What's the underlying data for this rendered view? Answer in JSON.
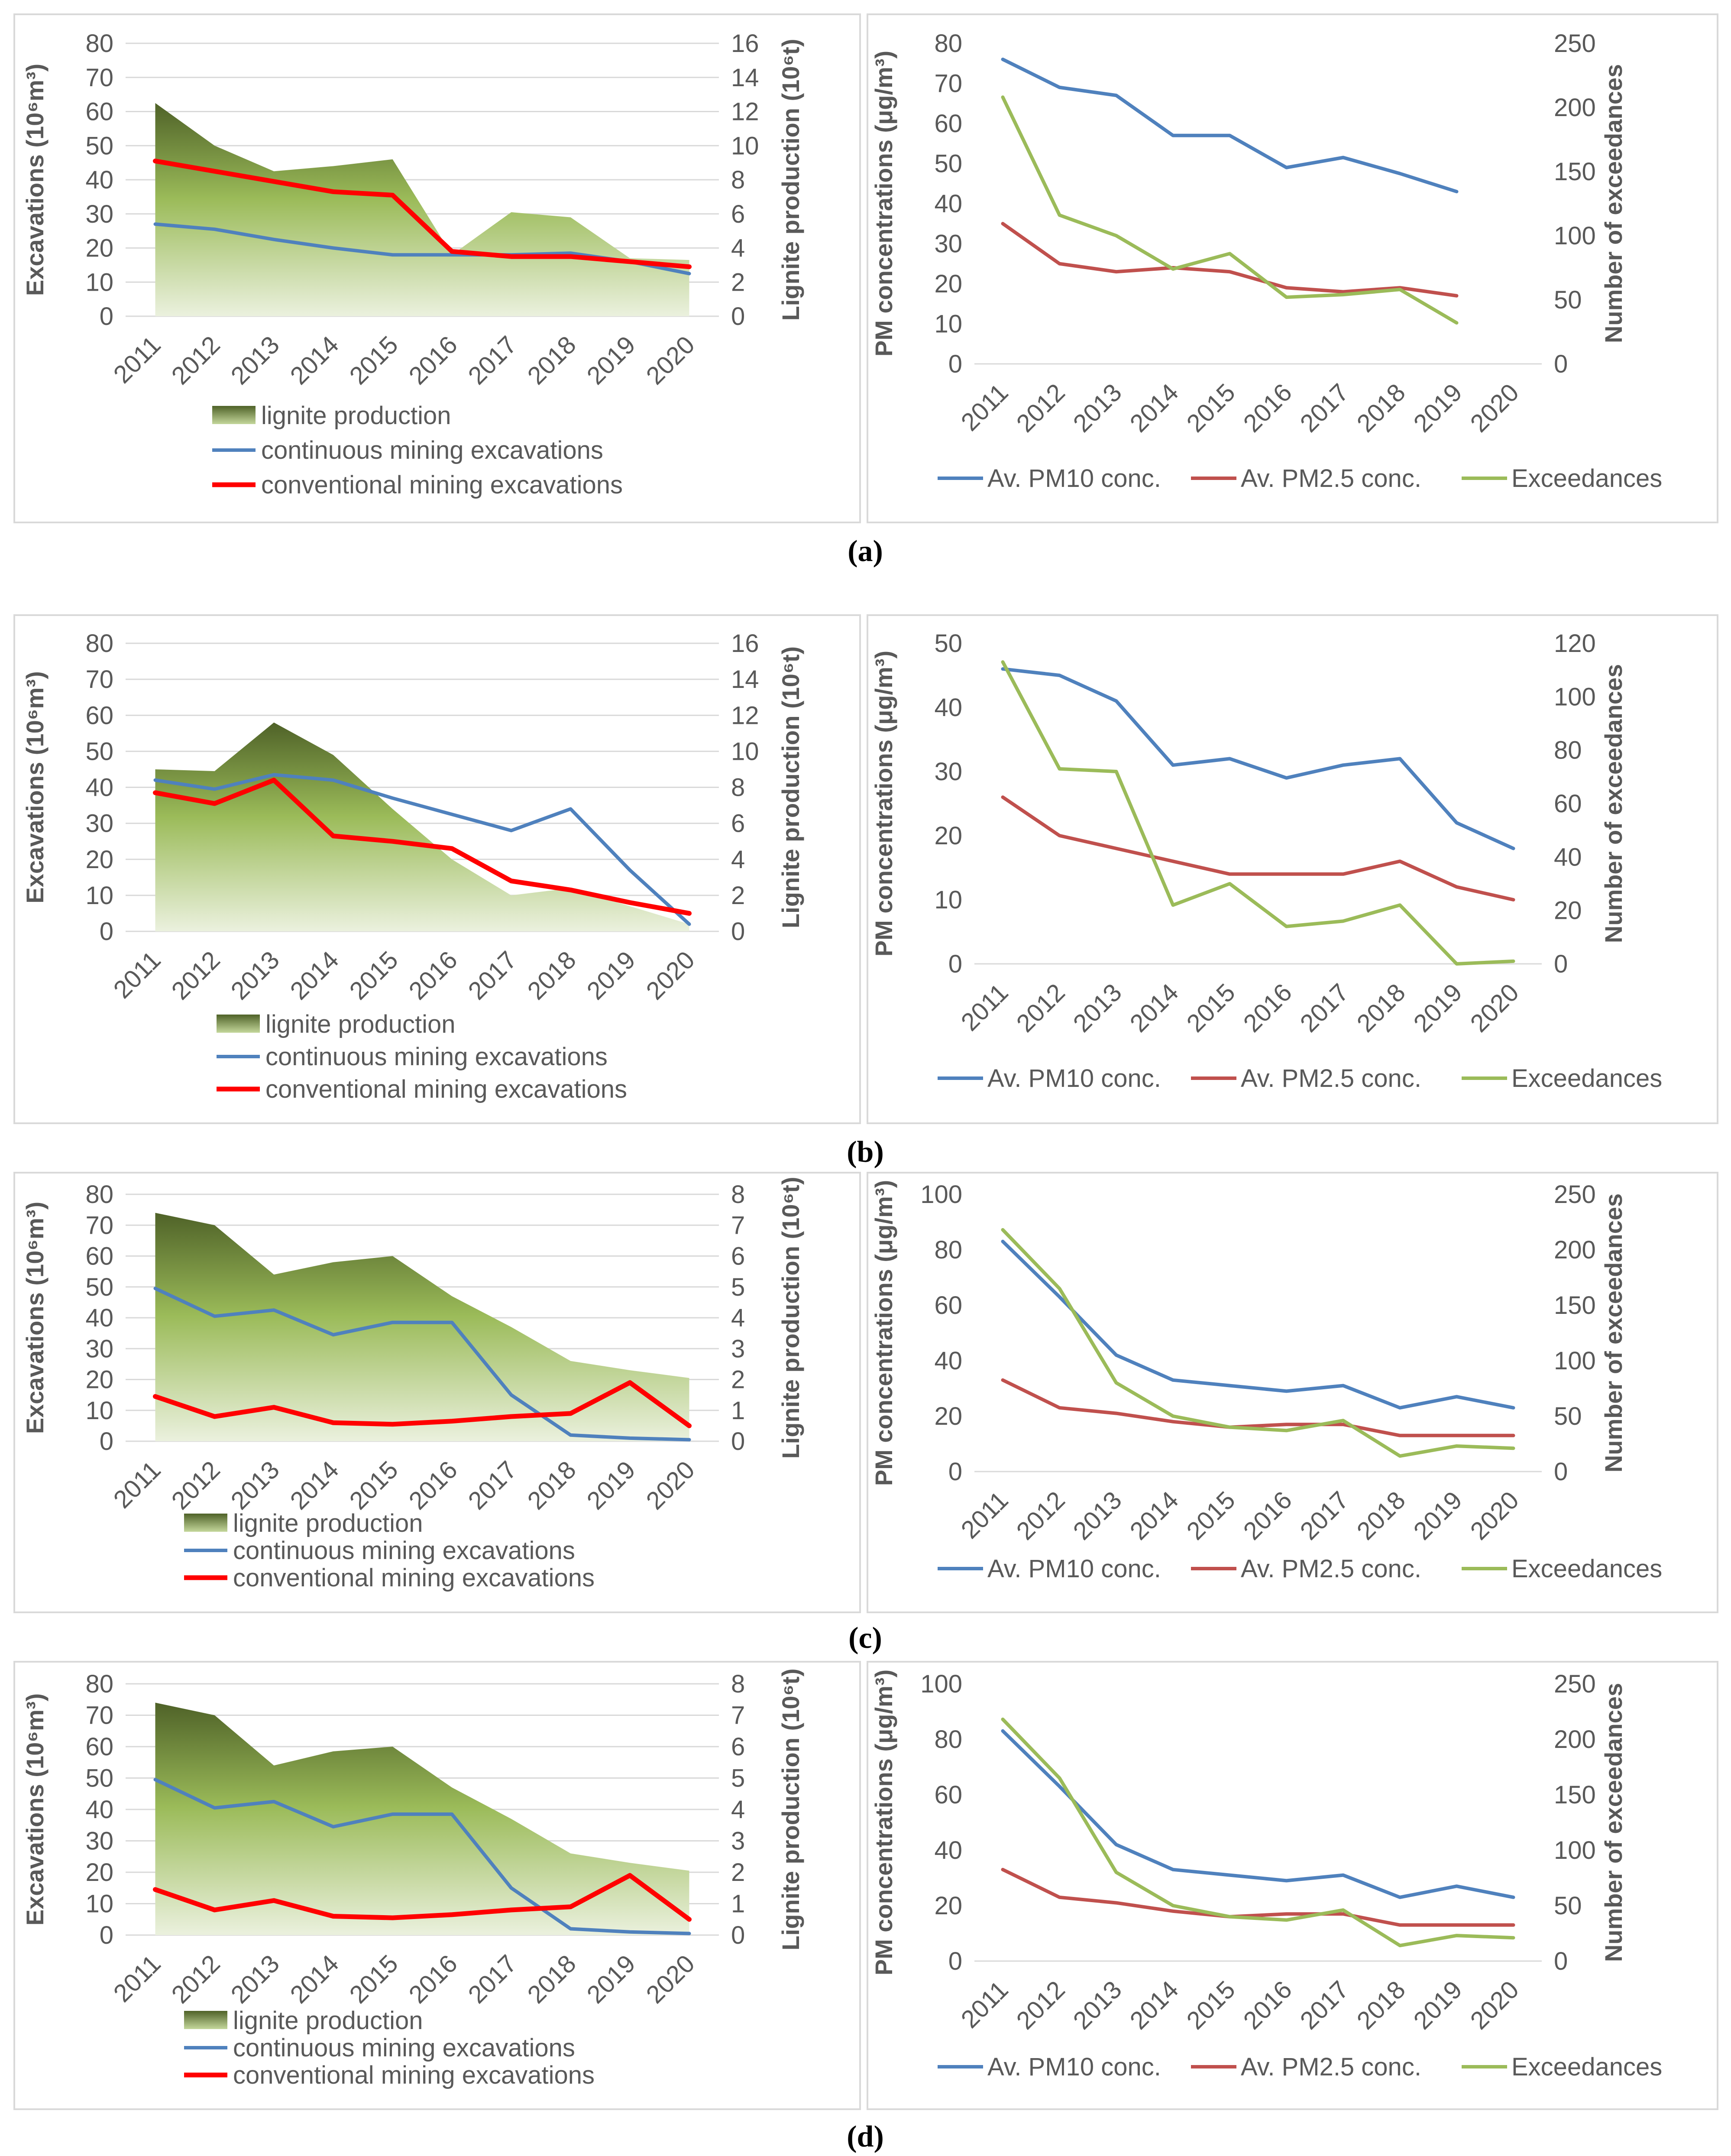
{
  "row_labels": [
    "(a)",
    "(b)",
    "(c)",
    "(d)"
  ],
  "chart_data": [
    {
      "id": "a-left",
      "type": "area+line",
      "title": "",
      "categories": [
        "2011",
        "2012",
        "2013",
        "2014",
        "2015",
        "2016",
        "2017",
        "2018",
        "2019",
        "2020"
      ],
      "xlabel": "",
      "ylabel": "Excavations (10⁶m³)",
      "ylim": [
        0,
        80
      ],
      "yticks": [
        0,
        10,
        20,
        30,
        40,
        50,
        60,
        70,
        80
      ],
      "y2label": "Lignite production (10⁶t)",
      "y2lim": [
        0,
        16
      ],
      "y2ticks": [
        0,
        2,
        4,
        6,
        8,
        10,
        12,
        14,
        16
      ],
      "grid": true,
      "legend_position": "bottom",
      "series": [
        {
          "name": "lignite production",
          "kind": "area",
          "axis": "right",
          "color": "#76933c",
          "values": [
            12.5,
            10,
            8.5,
            8.8,
            9.2,
            3.6,
            6.1,
            5.8,
            3.4,
            3.3
          ]
        },
        {
          "name": "continuous mining excavations",
          "kind": "line",
          "axis": "left",
          "color": "#4f81bd",
          "values": [
            27,
            25.5,
            22.5,
            20,
            18,
            18,
            18,
            18.5,
            16,
            12.5
          ]
        },
        {
          "name": "conventional mining excavations",
          "kind": "line",
          "axis": "left",
          "color": "#ff0000",
          "values": [
            45.5,
            42.5,
            39.5,
            36.5,
            35.5,
            19,
            17.5,
            17.5,
            16,
            14.5
          ]
        }
      ]
    },
    {
      "id": "a-right",
      "type": "line",
      "title": "",
      "categories": [
        "2011",
        "2012",
        "2013",
        "2014",
        "2015",
        "2016",
        "2017",
        "2018",
        "2019",
        "2020"
      ],
      "xlabel": "",
      "ylabel": "PM concentrations (μg/m³)",
      "ylim": [
        0,
        80
      ],
      "yticks": [
        0,
        10,
        20,
        30,
        40,
        50,
        60,
        70,
        80
      ],
      "y2label": "Number of exceedances",
      "y2lim": [
        0,
        250
      ],
      "y2ticks": [
        0,
        50,
        100,
        150,
        200,
        250
      ],
      "grid": false,
      "legend_position": "bottom",
      "series": [
        {
          "name": "Av. PM10 conc.",
          "axis": "left",
          "color": "#4f81bd",
          "values": [
            76,
            69,
            67,
            57,
            57,
            49,
            51.5,
            47.5,
            43,
            null
          ]
        },
        {
          "name": "Av. PM2.5 conc.",
          "axis": "left",
          "color": "#c0504d",
          "values": [
            35,
            25,
            23,
            24,
            23,
            19,
            18,
            19,
            17,
            null
          ]
        },
        {
          "name": "Exceedances",
          "axis": "right",
          "color": "#9bbb59",
          "values": [
            208,
            116,
            100,
            74,
            86,
            52,
            54,
            58,
            32,
            null
          ]
        }
      ]
    },
    {
      "id": "b-left",
      "type": "area+line",
      "title": "",
      "categories": [
        "2011",
        "2012",
        "2013",
        "2014",
        "2015",
        "2016",
        "2017",
        "2018",
        "2019",
        "2020"
      ],
      "xlabel": "",
      "ylabel": "Excavations (10⁶m³)",
      "ylim": [
        0,
        80
      ],
      "yticks": [
        0,
        10,
        20,
        30,
        40,
        50,
        60,
        70,
        80
      ],
      "y2label": "Lignite production (10⁶t)",
      "y2lim": [
        0,
        16
      ],
      "y2ticks": [
        0,
        2,
        4,
        6,
        8,
        10,
        12,
        14,
        16
      ],
      "grid": true,
      "legend_position": "bottom",
      "series": [
        {
          "name": "lignite production",
          "kind": "area",
          "axis": "right",
          "color": "#76933c",
          "values": [
            9,
            8.9,
            11.6,
            9.8,
            6.8,
            4,
            2,
            2.4,
            1.4,
            0.4
          ]
        },
        {
          "name": "continuous mining excavations",
          "kind": "line",
          "axis": "left",
          "color": "#4f81bd",
          "values": [
            42,
            39.5,
            43.5,
            42,
            37,
            32.5,
            28,
            34,
            17,
            2
          ]
        },
        {
          "name": "conventional mining excavations",
          "kind": "line",
          "axis": "left",
          "color": "#ff0000",
          "values": [
            38.5,
            35.5,
            42,
            26.5,
            25,
            23,
            14,
            11.5,
            8,
            5
          ]
        }
      ]
    },
    {
      "id": "b-right",
      "type": "line",
      "title": "",
      "categories": [
        "2011",
        "2012",
        "2013",
        "2014",
        "2015",
        "2016",
        "2017",
        "2018",
        "2019",
        "2020"
      ],
      "xlabel": "",
      "ylabel": "PM concentrations (μg/m³)",
      "ylim": [
        0,
        50
      ],
      "yticks": [
        0,
        10,
        20,
        30,
        40,
        50
      ],
      "y2label": "Number of exceedances",
      "y2lim": [
        0,
        120
      ],
      "y2ticks": [
        0,
        20,
        40,
        60,
        80,
        100,
        120
      ],
      "grid": false,
      "legend_position": "bottom",
      "series": [
        {
          "name": "Av. PM10 conc.",
          "axis": "left",
          "color": "#4f81bd",
          "values": [
            46,
            45,
            41,
            31,
            32,
            29,
            31,
            32,
            22,
            18
          ]
        },
        {
          "name": "Av. PM2.5 conc.",
          "axis": "left",
          "color": "#c0504d",
          "values": [
            26,
            20,
            18,
            16,
            14,
            14,
            14,
            16,
            12,
            10
          ]
        },
        {
          "name": "Exceedances",
          "axis": "right",
          "color": "#9bbb59",
          "values": [
            113,
            73,
            72,
            22,
            30,
            14,
            16,
            22,
            0,
            1
          ]
        }
      ]
    },
    {
      "id": "c-left",
      "type": "area+line",
      "title": "",
      "categories": [
        "2011",
        "2012",
        "2013",
        "2014",
        "2015",
        "2016",
        "2017",
        "2018",
        "2019",
        "2020"
      ],
      "xlabel": "",
      "ylabel": "Excavations (10⁶m³)",
      "ylim": [
        0,
        80
      ],
      "yticks": [
        0,
        10,
        20,
        30,
        40,
        50,
        60,
        70,
        80
      ],
      "y2label": "Lignite production (10⁶t)",
      "y2lim": [
        0,
        8
      ],
      "y2ticks": [
        0,
        1,
        2,
        3,
        4,
        5,
        6,
        7,
        8
      ],
      "grid": true,
      "legend_position": "bottom",
      "series": [
        {
          "name": "lignite production",
          "kind": "area",
          "axis": "right",
          "color": "#76933c",
          "values": [
            7.4,
            7,
            5.4,
            5.8,
            6,
            4.7,
            3.7,
            2.6,
            2.3,
            2.05
          ]
        },
        {
          "name": "continuous mining excavations",
          "kind": "line",
          "axis": "left",
          "color": "#4f81bd",
          "values": [
            49.5,
            40.5,
            42.5,
            34.5,
            38.5,
            38.5,
            15,
            2,
            1,
            0.5
          ]
        },
        {
          "name": "conventional mining excavations",
          "kind": "line",
          "axis": "left",
          "color": "#ff0000",
          "values": [
            14.5,
            8,
            11,
            6,
            5.5,
            6.5,
            8,
            9,
            19,
            5
          ]
        }
      ]
    },
    {
      "id": "c-right",
      "type": "line",
      "title": "",
      "categories": [
        "2011",
        "2012",
        "2013",
        "2014",
        "2015",
        "2016",
        "2017",
        "2018",
        "2019",
        "2020"
      ],
      "xlabel": "",
      "ylabel": "PM concentrations (μg/m³)",
      "ylim": [
        0,
        100
      ],
      "yticks": [
        0,
        20,
        40,
        60,
        80,
        100
      ],
      "y2label": "Number of exceedances",
      "y2lim": [
        0,
        250
      ],
      "y2ticks": [
        0,
        50,
        100,
        150,
        200,
        250
      ],
      "grid": false,
      "legend_position": "bottom",
      "series": [
        {
          "name": "Av. PM10 conc.",
          "axis": "left",
          "color": "#4f81bd",
          "values": [
            83,
            63,
            42,
            33,
            31,
            29,
            31,
            23,
            27,
            23
          ]
        },
        {
          "name": "Av. PM2.5 conc.",
          "axis": "left",
          "color": "#c0504d",
          "values": [
            33,
            23,
            21,
            18,
            16,
            17,
            17,
            13,
            13,
            13
          ]
        },
        {
          "name": "Exceedances",
          "axis": "right",
          "color": "#9bbb59",
          "values": [
            218,
            165,
            80,
            50,
            40,
            37,
            46,
            14,
            23,
            21
          ]
        }
      ]
    },
    {
      "id": "d-left",
      "type": "area+line",
      "title": "",
      "categories": [
        "2011",
        "2012",
        "2013",
        "2014",
        "2015",
        "2016",
        "2017",
        "2018",
        "2019",
        "2020"
      ],
      "xlabel": "",
      "ylabel": "Excavations (10⁶m³)",
      "ylim": [
        0,
        80
      ],
      "yticks": [
        0,
        10,
        20,
        30,
        40,
        50,
        60,
        70,
        80
      ],
      "y2label": "Lignite production (10⁶t)",
      "y2lim": [
        0,
        8
      ],
      "y2ticks": [
        0,
        1,
        2,
        3,
        4,
        5,
        6,
        7,
        8
      ],
      "grid": true,
      "legend_position": "bottom",
      "series": [
        {
          "name": "lignite production",
          "kind": "area",
          "axis": "right",
          "color": "#76933c",
          "values": [
            7.4,
            7,
            5.4,
            5.85,
            6,
            4.7,
            3.7,
            2.6,
            2.3,
            2.05
          ]
        },
        {
          "name": "continuous mining excavations",
          "kind": "line",
          "axis": "left",
          "color": "#4f81bd",
          "values": [
            49.5,
            40.5,
            42.5,
            34.5,
            38.5,
            38.5,
            15,
            2,
            1,
            0.5
          ]
        },
        {
          "name": "conventional mining excavations",
          "kind": "line",
          "axis": "left",
          "color": "#ff0000",
          "values": [
            14.5,
            8,
            11,
            6,
            5.5,
            6.5,
            8,
            9,
            19,
            5
          ]
        }
      ]
    },
    {
      "id": "d-right",
      "type": "line",
      "title": "",
      "categories": [
        "2011",
        "2012",
        "2013",
        "2014",
        "2015",
        "2016",
        "2017",
        "2018",
        "2019",
        "2020"
      ],
      "xlabel": "",
      "ylabel": "PM concentrations (μg/m³)",
      "ylim": [
        0,
        100
      ],
      "yticks": [
        0,
        20,
        40,
        60,
        80,
        100
      ],
      "y2label": "Number of exceedances",
      "y2lim": [
        0,
        250
      ],
      "y2ticks": [
        0,
        50,
        100,
        150,
        200,
        250
      ],
      "grid": false,
      "legend_position": "bottom",
      "series": [
        {
          "name": "Av. PM10 conc.",
          "axis": "left",
          "color": "#4f81bd",
          "values": [
            83,
            63,
            42,
            33,
            31,
            29,
            31,
            23,
            27,
            23
          ]
        },
        {
          "name": "Av. PM2.5 conc.",
          "axis": "left",
          "color": "#c0504d",
          "values": [
            33,
            23,
            21,
            18,
            16,
            17,
            17,
            13,
            13,
            13
          ]
        },
        {
          "name": "Exceedances",
          "axis": "right",
          "color": "#9bbb59",
          "values": [
            218,
            165,
            80,
            50,
            40,
            37,
            46,
            14,
            23,
            21
          ]
        }
      ]
    }
  ]
}
